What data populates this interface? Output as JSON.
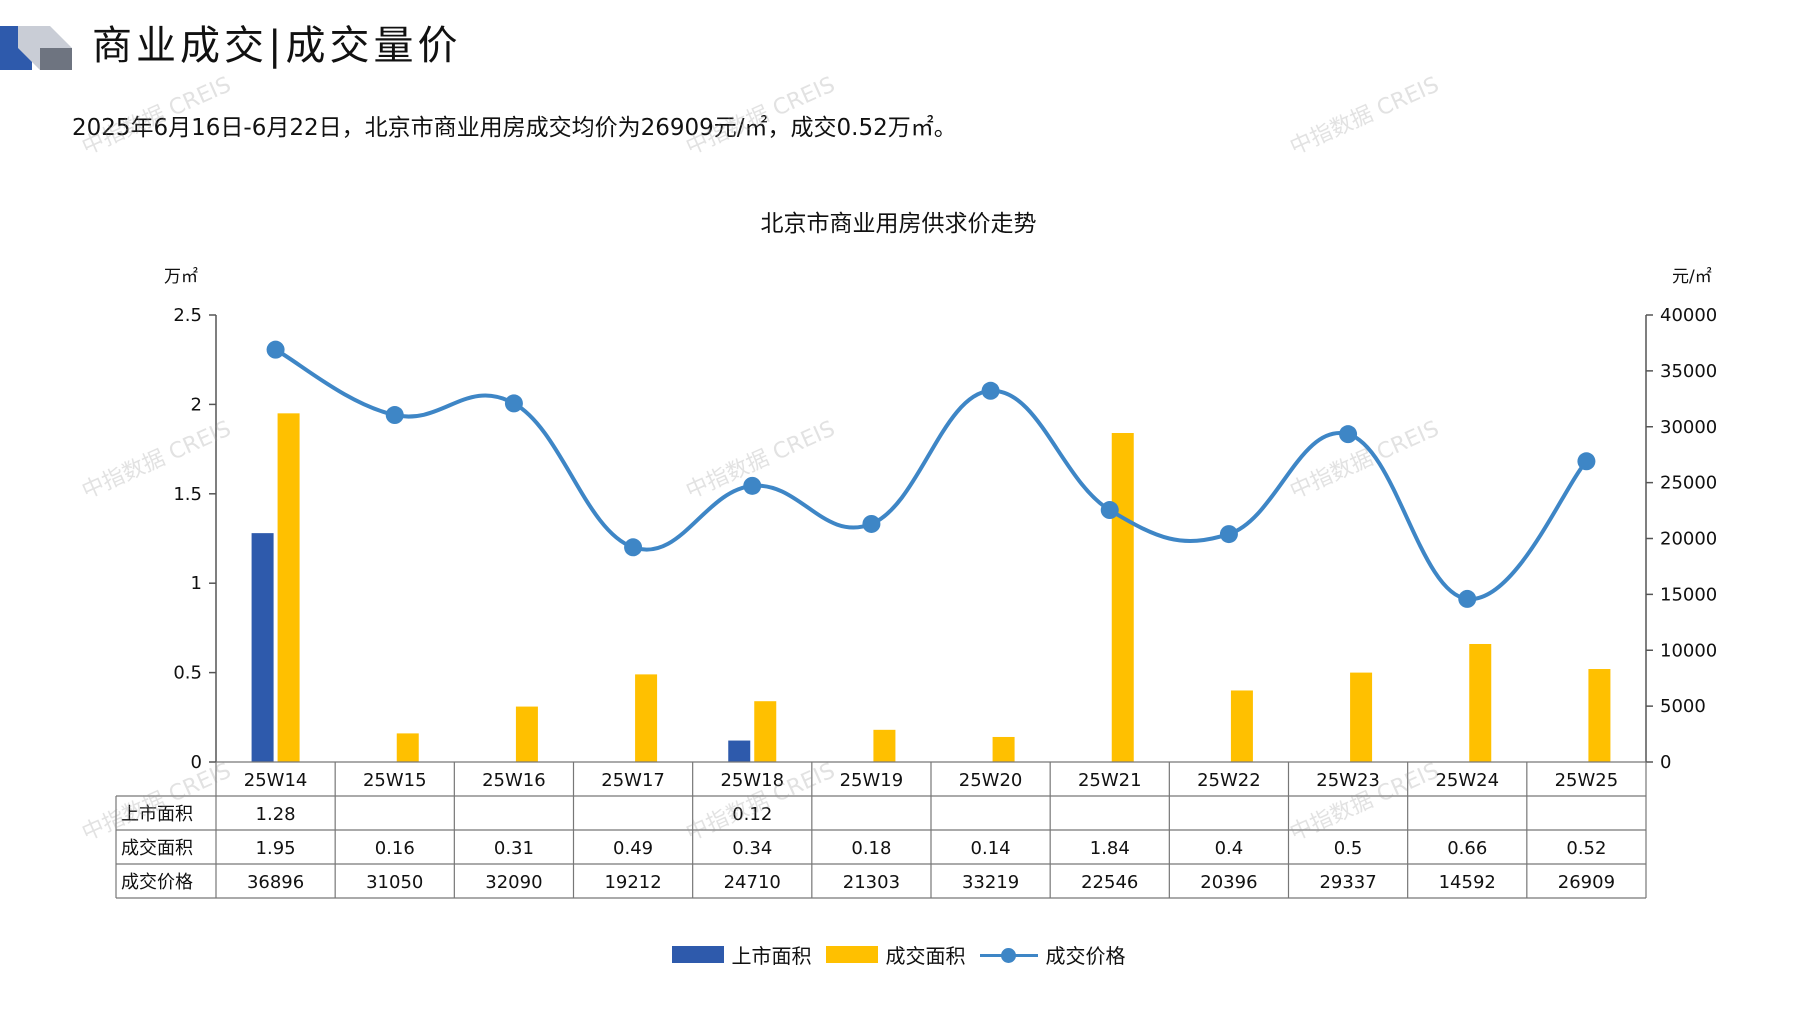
{
  "header": {
    "title": "商业成交|成交量价",
    "subtitle": "2025年6月16日-6月22日，北京市商业用房成交均价为26909元/㎡，成交0.52万㎡。"
  },
  "watermark": "中指数据 CREIS",
  "colors": {
    "supply": "#2E5AAC",
    "deal_area": "#FFC000",
    "price": "#3E86C6"
  },
  "chart_data": {
    "type": "bar",
    "title": "北京市商业用房供求价走势",
    "left_unit": "万㎡",
    "right_unit": "元/㎡",
    "left_ylim": [
      0,
      2.5
    ],
    "left_ticks": [
      "0",
      "0.5",
      "1",
      "1.5",
      "2",
      "2.5"
    ],
    "right_ylim": [
      0,
      40000
    ],
    "right_ticks": [
      "0",
      "5000",
      "10000",
      "15000",
      "20000",
      "25000",
      "30000",
      "35000",
      "40000"
    ],
    "categories": [
      "25W14",
      "25W15",
      "25W16",
      "25W17",
      "25W18",
      "25W19",
      "25W20",
      "25W21",
      "25W22",
      "25W23",
      "25W24",
      "25W25"
    ],
    "series": [
      {
        "name": "上市面积",
        "type": "bar",
        "axis": "left",
        "values": [
          1.28,
          null,
          null,
          null,
          0.12,
          null,
          null,
          null,
          null,
          null,
          null,
          null
        ],
        "labels": [
          "1.28",
          "",
          "",
          "",
          "0.12",
          "",
          "",
          "",
          "",
          "",
          "",
          ""
        ]
      },
      {
        "name": "成交面积",
        "type": "bar",
        "axis": "left",
        "values": [
          1.95,
          0.16,
          0.31,
          0.49,
          0.34,
          0.18,
          0.14,
          1.84,
          0.4,
          0.5,
          0.66,
          0.52
        ],
        "labels": [
          "1.95",
          "0.16",
          "0.31",
          "0.49",
          "0.34",
          "0.18",
          "0.14",
          "1.84",
          "0.4",
          "0.5",
          "0.66",
          "0.52"
        ]
      },
      {
        "name": "成交价格",
        "type": "line",
        "axis": "right",
        "values": [
          36896,
          31050,
          32090,
          19212,
          24710,
          21303,
          33219,
          22546,
          20396,
          29337,
          14592,
          26909
        ],
        "labels": [
          "36896",
          "31050",
          "32090",
          "19212",
          "24710",
          "21303",
          "33219",
          "22546",
          "20396",
          "29337",
          "14592",
          "26909"
        ]
      }
    ],
    "legend": "bottom",
    "grid": false
  }
}
